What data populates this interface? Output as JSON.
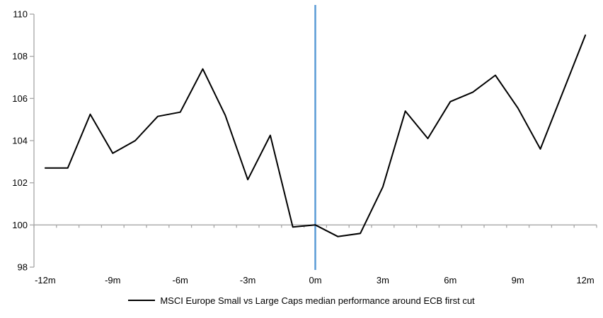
{
  "chart_data": {
    "type": "line",
    "title": "",
    "x": [
      -12,
      -11,
      -10,
      -9,
      -8,
      -7,
      -6,
      -5,
      -4,
      -3,
      -2,
      -1,
      0,
      1,
      2,
      3,
      4,
      5,
      6,
      7,
      8,
      9,
      10,
      11,
      12
    ],
    "series": [
      {
        "name": "MSCI Europe Small vs Large Caps median performance around ECB first cut",
        "color": "#000000",
        "values": [
          102.7,
          102.7,
          105.25,
          103.4,
          104.0,
          105.15,
          105.35,
          107.4,
          105.2,
          102.15,
          104.25,
          99.9,
          100.0,
          99.45,
          99.6,
          101.8,
          105.4,
          104.1,
          105.85,
          106.3,
          107.1,
          105.55,
          103.6,
          106.3,
          109.0
        ]
      }
    ],
    "ylim": [
      98,
      110
    ],
    "y_ticks": [
      98,
      100,
      102,
      104,
      106,
      108,
      110
    ],
    "x_ticks": {
      "labels": [
        "-12m",
        "-9m",
        "-6m",
        "-3m",
        "0m",
        "3m",
        "6m",
        "9m",
        "12m"
      ],
      "months": [
        -12,
        -9,
        -6,
        -3,
        0,
        3,
        6,
        9,
        12
      ]
    },
    "x_axis_at_value": 100,
    "event_line": {
      "x": 0,
      "color": "#5B9BD5"
    },
    "colors": {
      "axis": "#a6a6a6",
      "text": "#000000",
      "background": "#ffffff"
    },
    "grid": "off",
    "legend_position": "bottom-center"
  }
}
